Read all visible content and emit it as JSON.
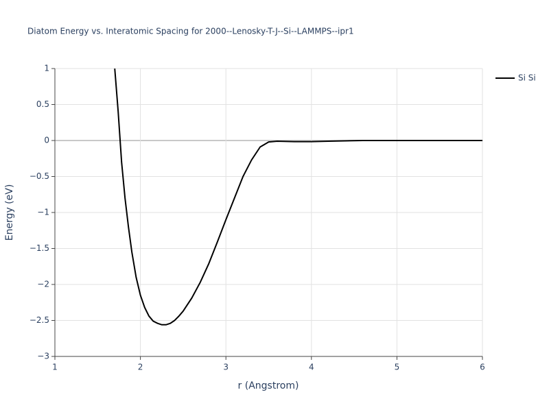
{
  "chart_data": {
    "type": "line",
    "title": "Diatom Energy vs. Interatomic Spacing for 2000--Lenosky-T-J--Si--LAMMPS--ipr1",
    "x_label": "r (Angstrom)",
    "y_label": "Energy (eV)",
    "x": [
      1.7,
      1.74,
      1.78,
      1.82,
      1.86,
      1.9,
      1.95,
      2.0,
      2.05,
      2.1,
      2.15,
      2.2,
      2.25,
      2.3,
      2.35,
      2.4,
      2.45,
      2.5,
      2.6,
      2.7,
      2.8,
      2.9,
      3.0,
      3.1,
      3.2,
      3.3,
      3.4,
      3.5,
      3.6,
      3.8,
      4.0,
      4.2,
      4.6,
      5.0,
      6.0
    ],
    "series": [
      {
        "name": "Si Si",
        "color": "#000000",
        "values": [
          1.0,
          0.4,
          -0.3,
          -0.8,
          -1.2,
          -1.55,
          -1.9,
          -2.15,
          -2.32,
          -2.44,
          -2.51,
          -2.54,
          -2.56,
          -2.56,
          -2.54,
          -2.5,
          -2.44,
          -2.37,
          -2.19,
          -1.97,
          -1.71,
          -1.41,
          -1.1,
          -0.8,
          -0.5,
          -0.27,
          -0.09,
          -0.02,
          -0.01,
          -0.015,
          -0.015,
          -0.01,
          0,
          0,
          0
        ]
      }
    ],
    "xlim": [
      1,
      6
    ],
    "xticks": [
      1,
      2,
      3,
      4,
      5,
      6
    ],
    "ylim": [
      -3,
      1
    ],
    "yticks": [
      1,
      0.5,
      0,
      {
        "value": -0.5,
        "label": "−0.5"
      },
      {
        "value": -1,
        "label": "−1"
      },
      {
        "value": -1.5,
        "label": "−1.5"
      },
      {
        "value": -2,
        "label": "−2"
      },
      {
        "value": -2.5,
        "label": "−2.5"
      },
      {
        "value": -3,
        "label": "−3"
      }
    ],
    "grid": true,
    "legend": "top-right"
  }
}
